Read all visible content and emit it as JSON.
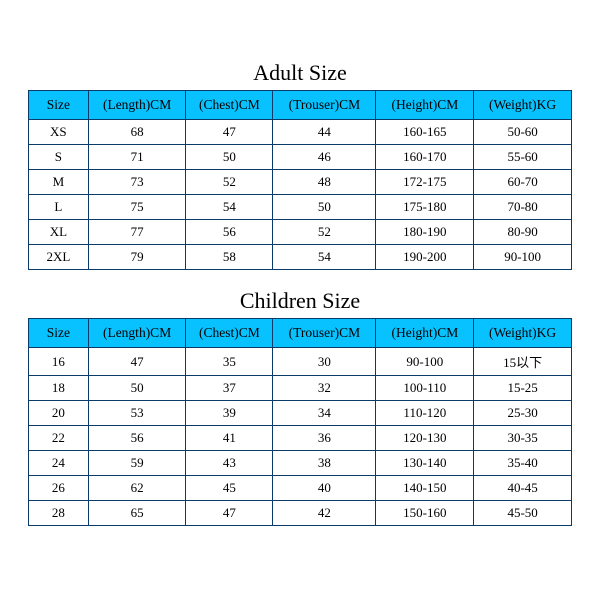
{
  "adult": {
    "title": "Adult Size",
    "columns": [
      "Size",
      "(Length)CM",
      "(Chest)CM",
      "(Trouser)CM",
      "(Height)CM",
      "(Weight)KG"
    ],
    "rows": [
      [
        "XS",
        "68",
        "47",
        "44",
        "160-165",
        "50-60"
      ],
      [
        "S",
        "71",
        "50",
        "46",
        "160-170",
        "55-60"
      ],
      [
        "M",
        "73",
        "52",
        "48",
        "172-175",
        "60-70"
      ],
      [
        "L",
        "75",
        "54",
        "50",
        "175-180",
        "70-80"
      ],
      [
        "XL",
        "77",
        "56",
        "52",
        "180-190",
        "80-90"
      ],
      [
        "2XL",
        "79",
        "58",
        "54",
        "190-200",
        "90-100"
      ]
    ]
  },
  "children": {
    "title": "Children Size",
    "columns": [
      "Size",
      "(Length)CM",
      "(Chest)CM",
      "(Trouser)CM",
      "(Height)CM",
      "(Weight)KG"
    ],
    "rows": [
      [
        "16",
        "47",
        "35",
        "30",
        "90-100",
        "15以下"
      ],
      [
        "18",
        "50",
        "37",
        "32",
        "100-110",
        "15-25"
      ],
      [
        "20",
        "53",
        "39",
        "34",
        "110-120",
        "25-30"
      ],
      [
        "22",
        "56",
        "41",
        "36",
        "120-130",
        "30-35"
      ],
      [
        "24",
        "59",
        "43",
        "38",
        "130-140",
        "35-40"
      ],
      [
        "26",
        "62",
        "45",
        "40",
        "140-150",
        "40-45"
      ],
      [
        "28",
        "65",
        "47",
        "42",
        "150-160",
        "45-50"
      ]
    ]
  },
  "colors": {
    "header_bg": "#07c2ff",
    "border": "#0a3a6a",
    "text": "#000000",
    "background": "#ffffff"
  }
}
